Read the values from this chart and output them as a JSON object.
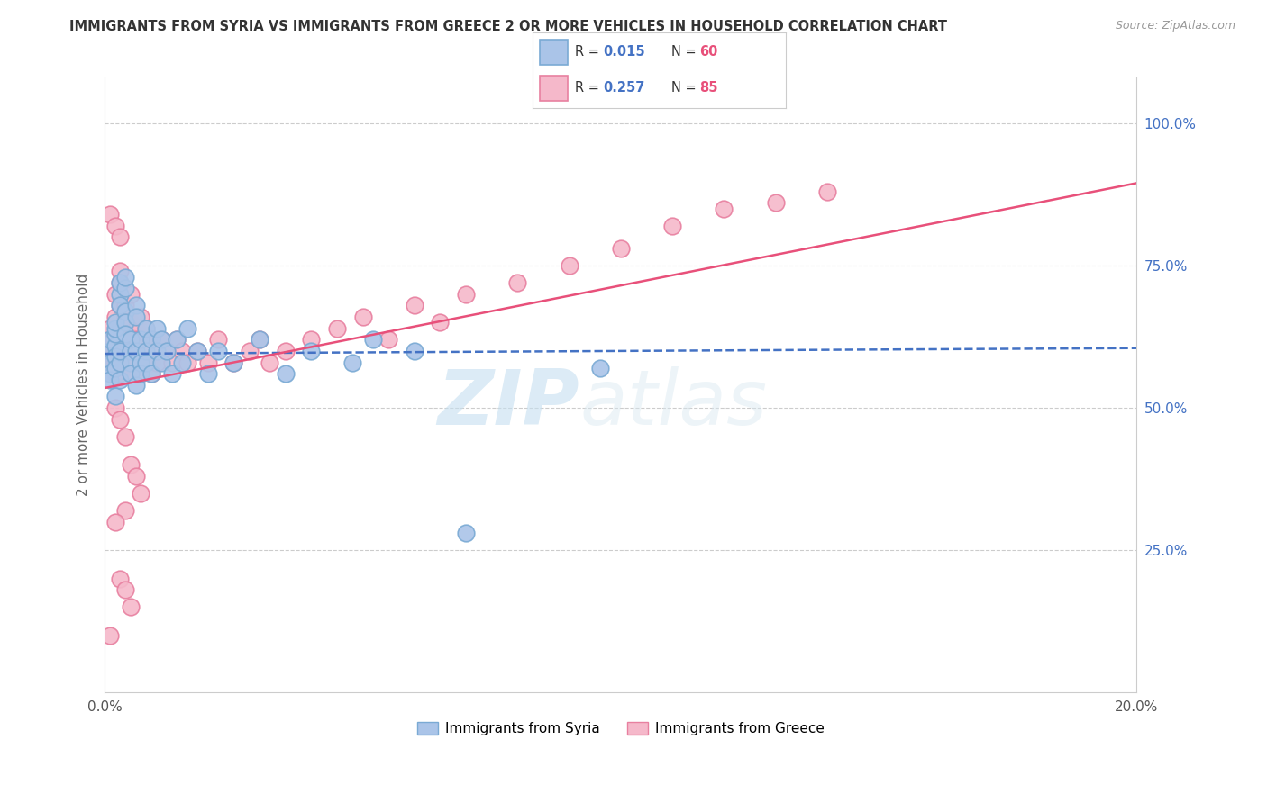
{
  "title": "IMMIGRANTS FROM SYRIA VS IMMIGRANTS FROM GREECE 2 OR MORE VEHICLES IN HOUSEHOLD CORRELATION CHART",
  "source": "Source: ZipAtlas.com",
  "ylabel": "2 or more Vehicles in Household",
  "xlim": [
    0.0,
    0.2
  ],
  "ylim": [
    0.0,
    1.08
  ],
  "syria_color": "#aac4e8",
  "syria_edge": "#7aaad4",
  "greece_color": "#f5b8ca",
  "greece_edge": "#e880a0",
  "syria_line_color": "#4472c4",
  "greece_line_color": "#e8507a",
  "syria_R": 0.015,
  "syria_N": 60,
  "greece_R": 0.257,
  "greece_N": 85,
  "legend_label_syria": "Immigrants from Syria",
  "legend_label_greece": "Immigrants from Greece",
  "watermark_zip": "ZIP",
  "watermark_atlas": "atlas",
  "background_color": "#ffffff",
  "grid_color": "#cccccc",
  "title_color": "#333333",
  "axis_label_color": "#666666",
  "tick_color": "#4472c4",
  "legend_R_color": "#4472c4",
  "legend_N_color": "#e8507a",
  "syria_line_y0": 0.595,
  "syria_line_y1": 0.605,
  "greece_line_y0": 0.535,
  "greece_line_y1": 0.895,
  "syria_scatter_x": [
    0.001,
    0.001,
    0.001,
    0.001,
    0.001,
    0.002,
    0.002,
    0.002,
    0.002,
    0.002,
    0.002,
    0.002,
    0.003,
    0.003,
    0.003,
    0.003,
    0.003,
    0.003,
    0.004,
    0.004,
    0.004,
    0.004,
    0.004,
    0.005,
    0.005,
    0.005,
    0.005,
    0.006,
    0.006,
    0.006,
    0.006,
    0.007,
    0.007,
    0.007,
    0.008,
    0.008,
    0.008,
    0.009,
    0.009,
    0.01,
    0.01,
    0.011,
    0.011,
    0.012,
    0.013,
    0.014,
    0.015,
    0.016,
    0.018,
    0.02,
    0.022,
    0.025,
    0.03,
    0.035,
    0.04,
    0.048,
    0.052,
    0.06,
    0.07,
    0.096
  ],
  "syria_scatter_y": [
    0.6,
    0.58,
    0.56,
    0.62,
    0.55,
    0.61,
    0.59,
    0.63,
    0.57,
    0.64,
    0.52,
    0.65,
    0.7,
    0.68,
    0.72,
    0.58,
    0.55,
    0.6,
    0.67,
    0.71,
    0.65,
    0.73,
    0.63,
    0.6,
    0.58,
    0.56,
    0.62,
    0.68,
    0.54,
    0.6,
    0.66,
    0.58,
    0.62,
    0.56,
    0.64,
    0.6,
    0.58,
    0.56,
    0.62,
    0.6,
    0.64,
    0.58,
    0.62,
    0.6,
    0.56,
    0.62,
    0.58,
    0.64,
    0.6,
    0.56,
    0.6,
    0.58,
    0.62,
    0.56,
    0.6,
    0.58,
    0.62,
    0.6,
    0.28,
    0.57
  ],
  "greece_scatter_x": [
    0.001,
    0.001,
    0.001,
    0.001,
    0.002,
    0.002,
    0.002,
    0.002,
    0.002,
    0.002,
    0.003,
    0.003,
    0.003,
    0.003,
    0.003,
    0.003,
    0.004,
    0.004,
    0.004,
    0.004,
    0.004,
    0.005,
    0.005,
    0.005,
    0.005,
    0.005,
    0.006,
    0.006,
    0.006,
    0.006,
    0.007,
    0.007,
    0.007,
    0.007,
    0.008,
    0.008,
    0.008,
    0.009,
    0.009,
    0.009,
    0.01,
    0.01,
    0.011,
    0.012,
    0.013,
    0.014,
    0.015,
    0.016,
    0.018,
    0.02,
    0.022,
    0.025,
    0.028,
    0.03,
    0.032,
    0.035,
    0.04,
    0.045,
    0.05,
    0.055,
    0.06,
    0.065,
    0.07,
    0.08,
    0.09,
    0.1,
    0.11,
    0.12,
    0.13,
    0.14,
    0.001,
    0.002,
    0.003,
    0.002,
    0.003,
    0.004,
    0.005,
    0.006,
    0.007,
    0.004,
    0.003,
    0.004,
    0.005,
    0.002,
    0.001
  ],
  "greece_scatter_y": [
    0.62,
    0.6,
    0.58,
    0.64,
    0.66,
    0.63,
    0.6,
    0.58,
    0.56,
    0.7,
    0.72,
    0.68,
    0.74,
    0.6,
    0.58,
    0.56,
    0.66,
    0.64,
    0.62,
    0.6,
    0.68,
    0.65,
    0.62,
    0.58,
    0.56,
    0.7,
    0.64,
    0.62,
    0.6,
    0.58,
    0.66,
    0.62,
    0.58,
    0.56,
    0.64,
    0.6,
    0.58,
    0.62,
    0.58,
    0.56,
    0.6,
    0.58,
    0.62,
    0.6,
    0.58,
    0.62,
    0.6,
    0.58,
    0.6,
    0.58,
    0.62,
    0.58,
    0.6,
    0.62,
    0.58,
    0.6,
    0.62,
    0.64,
    0.66,
    0.62,
    0.68,
    0.65,
    0.7,
    0.72,
    0.75,
    0.78,
    0.82,
    0.85,
    0.86,
    0.88,
    0.84,
    0.82,
    0.8,
    0.5,
    0.48,
    0.45,
    0.4,
    0.38,
    0.35,
    0.32,
    0.2,
    0.18,
    0.15,
    0.3,
    0.1
  ]
}
